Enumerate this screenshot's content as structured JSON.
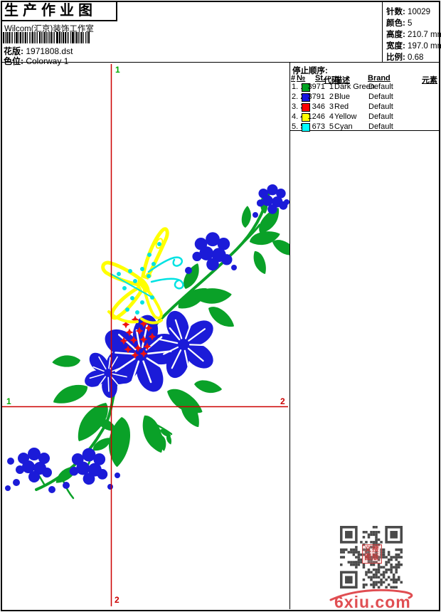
{
  "header": {
    "title": "生产作业图",
    "studio": "Wilcom(汇京)装饰工作室",
    "pattern": {
      "label": "花版:",
      "value": "1971808.dst"
    },
    "colorway": {
      "label": "色位:",
      "value": "Colorway 1"
    },
    "info": [
      {
        "label": "针数:",
        "value": "10029"
      },
      {
        "label": "颜色:",
        "value": "5"
      },
      {
        "label": "高度:",
        "value": "210.7 mm"
      },
      {
        "label": "宽度:",
        "value": "197.0 mm"
      },
      {
        "label": "比例:",
        "value": "0.68"
      }
    ]
  },
  "stop_sequence": {
    "title": "停止顺序:",
    "columns": [
      "#",
      "№",
      "St.",
      "代码",
      "描述",
      "Brand",
      "元素"
    ],
    "rows": [
      {
        "seq": "1. 1",
        "swatch": "#00a321",
        "st": "3971",
        "code": "1",
        "desc": "Dark Green",
        "brand": "Default"
      },
      {
        "seq": "2. 2",
        "swatch": "#1414e0",
        "st": "3791",
        "code": "2",
        "desc": "Blue",
        "brand": "Default"
      },
      {
        "seq": "3. 3",
        "swatch": "#ff0000",
        "st": "346",
        "code": "3",
        "desc": "Red",
        "brand": "Default"
      },
      {
        "seq": "4. 4",
        "swatch": "#ffff00",
        "st": "1246",
        "code": "4",
        "desc": "Yellow",
        "brand": "Default"
      },
      {
        "seq": "5. 5",
        "swatch": "#00ffff",
        "st": "673",
        "code": "5",
        "desc": "Cyan",
        "brand": "Default"
      }
    ]
  },
  "canvas": {
    "start_label": "1",
    "end_label": "2",
    "crosshair_color": "#cc0000",
    "start_color": "#00aa00",
    "end_color": "#cc0000",
    "palette": {
      "dark_green": "#0aa128",
      "blue": "#1b1bd8",
      "red": "#ee1111",
      "yellow": "#ffff00",
      "cyan": "#00e2e2"
    }
  },
  "footer": {
    "watermark": "6xiu.com",
    "watermark_color": "#e04e52",
    "qr_color": "#4a4a4a",
    "stamp_chars": "义搜图版"
  }
}
